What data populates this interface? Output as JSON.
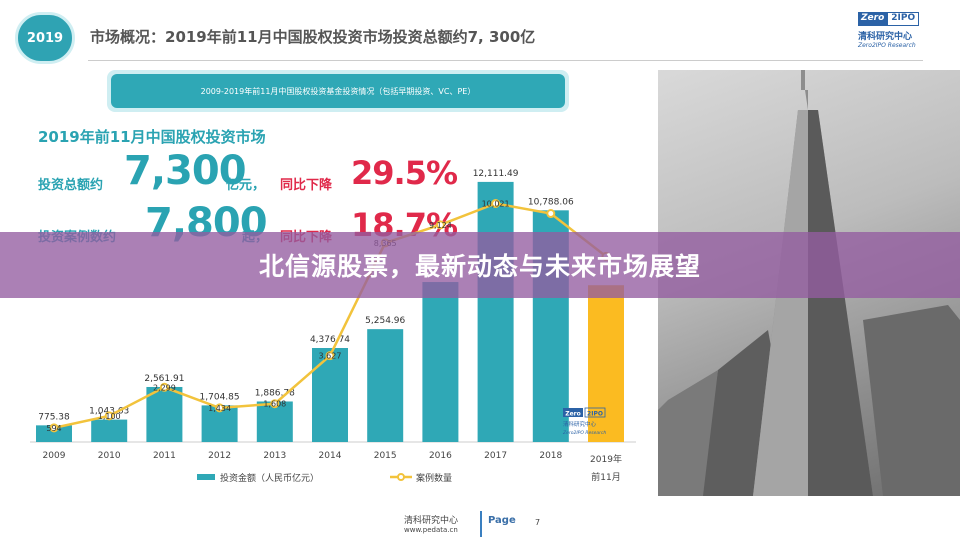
{
  "header": {
    "badge": "2019",
    "title": "市场概况：2019年前11月中国股权投资市场投资总额约7, 300亿"
  },
  "logo": {
    "zero": "Zero",
    "two": "2",
    "ipo": "IPO",
    "cn": "清科研究中心",
    "en": "Zero2IPO Research"
  },
  "banner": "2009-2019年前11月中国股权投资基金投资情况（包括早期投资、VC、PE）",
  "stats": {
    "heading": "2019年前11月中国股权投资市场",
    "row1": {
      "label": "投资总额约",
      "value": "7,300",
      "unit": "亿元，",
      "change_label": "同比下降",
      "change_value": "29.5%"
    },
    "row2": {
      "label": "投资案例数约",
      "value": "7,800",
      "unit": "起，",
      "change_label": "同比下降",
      "change_value": "18.7%"
    }
  },
  "overlay_title": "北信源股票，最新动态与未来市场展望",
  "chart_data": {
    "type": "bar",
    "categories": [
      "2009",
      "2010",
      "2011",
      "2012",
      "2013",
      "2014",
      "2015",
      "2016",
      "2017",
      "2018",
      "2019年前11月"
    ],
    "series": [
      {
        "name": "投资金额（人民币亿元）",
        "type": "bar",
        "values": [
          775.38,
          1043.63,
          2561.91,
          1704.85,
          1886.78,
          4376.74,
          5254.96,
          7449,
          12111.49,
          10788.06,
          7300
        ],
        "labels": [
          "775.38",
          "1,043.63",
          "2,561.91",
          "1,704.85",
          "1,886.78",
          "4,376.74",
          "5,254.96",
          "",
          "12,111.49",
          "10,788.06",
          ""
        ]
      },
      {
        "name": "案例数量",
        "type": "line",
        "values": [
          594,
          1100,
          2299,
          1434,
          1608,
          3627,
          8365,
          9124,
          10021,
          9600,
          7800
        ],
        "labels": [
          "594",
          "1,100",
          "2,299",
          "1,434",
          "1,608",
          "3,627",
          "8,365",
          "9,124",
          "10,021",
          "",
          ""
        ]
      }
    ],
    "colors": {
      "bar": "#2fa8b6",
      "bar_highlight": "#fbbb21",
      "line": "#f2c33c"
    },
    "legend_position": "bottom"
  },
  "footer": {
    "org": "清科研究中心",
    "url": "www.pedata.cn",
    "page_label": "Page",
    "page_number": "7"
  }
}
